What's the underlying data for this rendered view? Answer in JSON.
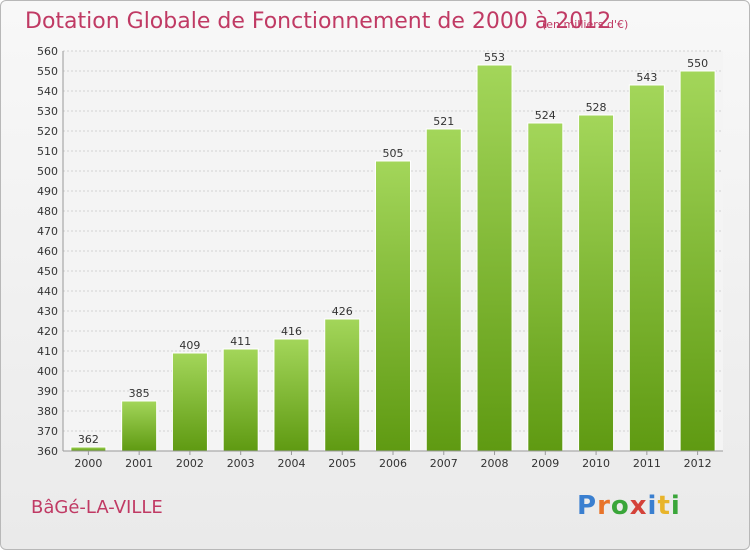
{
  "header": {
    "title": "Dotation Globale de Fonctionnement de 2000 à 2012",
    "unit_note": "(en milliers d'€)"
  },
  "footer": {
    "commune": "BâGé-LA-VILLE",
    "logo_text": "Proxiti",
    "logo_letters": [
      "P",
      "r",
      "o",
      "x",
      "i",
      "t",
      "i"
    ],
    "logo_colors": [
      "#3a7fd0",
      "#e8742a",
      "#3aa63a",
      "#d4423a",
      "#3a7fd0",
      "#e8b42a",
      "#3aa63a"
    ]
  },
  "chart_data": {
    "type": "bar",
    "categories": [
      "2000",
      "2001",
      "2002",
      "2003",
      "2004",
      "2005",
      "2006",
      "2007",
      "2008",
      "2009",
      "2010",
      "2011",
      "2012"
    ],
    "values": [
      362,
      385,
      409,
      411,
      416,
      426,
      505,
      521,
      553,
      524,
      528,
      543,
      550
    ],
    "title": "Dotation Globale de Fonctionnement de 2000 à 2012",
    "subtitle": "(en milliers d'€)",
    "ylim": [
      360,
      560
    ],
    "ytick_step": 10,
    "grid": true,
    "bar_color_top": "#9fd455",
    "bar_color_bottom": "#5f9a12"
  }
}
